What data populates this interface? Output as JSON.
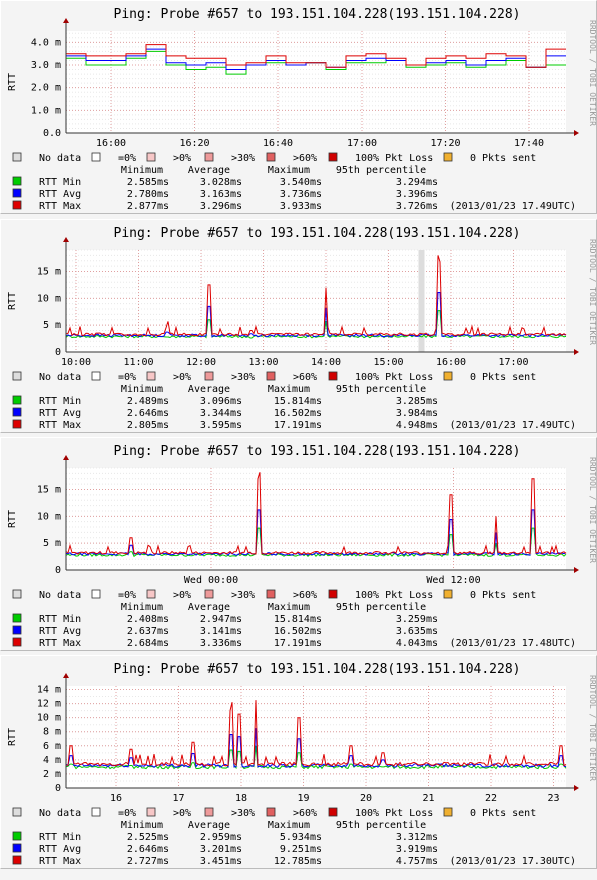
{
  "legend_boxes": [
    {
      "label": "No data",
      "color": "#dddddd"
    },
    {
      "label": "=0%",
      "color": "#ffffff"
    },
    {
      "label": ">0%",
      "color": "#f7c7c7"
    },
    {
      "label": ">30%",
      "color": "#ee9a9a"
    },
    {
      "label": ">60%",
      "color": "#e06060"
    },
    {
      "label": "100% Pkt Loss",
      "color": "#d00000"
    },
    {
      "label": "0 Pkts sent",
      "color": "#f0b030"
    }
  ],
  "stat_headers": [
    "Minimum",
    "Average",
    "Maximum",
    "95th percentile"
  ],
  "series_colors": {
    "RTT Min": "#00cc00",
    "RTT Avg": "#0000ff",
    "RTT Max": "#dd0000"
  },
  "sidebar_text": "RRDTOOL / TOBI OETIKER",
  "charts": [
    {
      "title": "Ping: Probe #657 to 193.151.104.228(193.151.104.228)",
      "ylabel": "RTT",
      "y_ticks": [
        "0.0",
        "1.0 m",
        "2.0 m",
        "3.0 m",
        "4.0 m"
      ],
      "y_max": 4.5,
      "x_ticks": [
        "16:00",
        "16:20",
        "16:40",
        "17:00",
        "17:20",
        "17:40"
      ],
      "x_tick_pos": [
        0.09,
        0.257,
        0.424,
        0.592,
        0.759,
        0.926
      ],
      "stats": [
        {
          "name": "RTT Min",
          "min": "2.585ms",
          "avg": "3.028ms",
          "max": "3.540ms",
          "p95": "3.294ms"
        },
        {
          "name": "RTT Avg",
          "min": "2.780ms",
          "avg": "3.163ms",
          "max": "3.736ms",
          "p95": "3.396ms"
        },
        {
          "name": "RTT Max",
          "min": "2.877ms",
          "avg": "3.296ms",
          "max": "3.933ms",
          "p95": "3.726ms",
          "stamp": "(2013/01/23 17.49UTC)"
        }
      ],
      "chart_data": {
        "type": "line",
        "style": "step",
        "series": [
          {
            "name": "RTT Min",
            "values": [
              3.3,
              3.0,
              3.0,
              3.3,
              3.6,
              3.0,
              2.8,
              2.9,
              2.6,
              3.0,
              3.1,
              3.0,
              3.1,
              2.8,
              3.1,
              3.1,
              3.2,
              2.9,
              3.0,
              3.1,
              2.9,
              3.0,
              3.2,
              2.9,
              3.0
            ]
          },
          {
            "name": "RTT Avg",
            "values": [
              3.4,
              3.2,
              3.2,
              3.4,
              3.7,
              3.1,
              3.0,
              3.1,
              2.8,
              3.0,
              3.2,
              3.0,
              3.1,
              2.9,
              3.2,
              3.3,
              3.2,
              3.0,
              3.1,
              3.2,
              3.0,
              3.2,
              3.3,
              2.9,
              3.4
            ]
          },
          {
            "name": "RTT Max",
            "values": [
              3.5,
              3.4,
              3.4,
              3.5,
              3.9,
              3.4,
              3.3,
              3.3,
              3.0,
              3.1,
              3.4,
              3.1,
              3.1,
              2.9,
              3.4,
              3.5,
              3.3,
              3.0,
              3.3,
              3.4,
              3.3,
              3.5,
              3.4,
              2.9,
              3.7
            ]
          }
        ]
      }
    },
    {
      "title": "Ping: Probe #657 to 193.151.104.228(193.151.104.228)",
      "ylabel": "RTT",
      "y_ticks": [
        "0",
        "5 m",
        "10 m",
        "15 m"
      ],
      "y_max": 19,
      "x_ticks": [
        "10:00",
        "11:00",
        "12:00",
        "13:00",
        "14:00",
        "15:00",
        "16:00",
        "17:00"
      ],
      "x_tick_pos": [
        0.02,
        0.145,
        0.27,
        0.395,
        0.52,
        0.645,
        0.77,
        0.895
      ],
      "stats": [
        {
          "name": "RTT Min",
          "min": "2.489ms",
          "avg": "3.096ms",
          "max": "15.814ms",
          "p95": "3.285ms"
        },
        {
          "name": "RTT Avg",
          "min": "2.646ms",
          "avg": "3.344ms",
          "max": "16.502ms",
          "p95": "3.984ms"
        },
        {
          "name": "RTT Max",
          "min": "2.805ms",
          "avg": "3.595ms",
          "max": "17.191ms",
          "p95": "4.948ms",
          "stamp": "(2013/01/23 17.49UTC)"
        }
      ],
      "chart_data": {
        "type": "line",
        "style": "noisy",
        "spikes": [
          [
            0.2,
            4.5
          ],
          [
            0.285,
            12.5
          ],
          [
            0.37,
            4
          ],
          [
            0.52,
            12
          ],
          [
            0.745,
            16.8
          ]
        ],
        "baseline": 3.1
      }
    },
    {
      "title": "Ping: Probe #657 to 193.151.104.228(193.151.104.228)",
      "ylabel": "RTT",
      "y_ticks": [
        "0",
        "5 m",
        "10 m",
        "15 m"
      ],
      "y_max": 19,
      "x_ticks": [
        "Wed 00:00",
        "Wed 12:00"
      ],
      "x_tick_pos": [
        0.29,
        0.775
      ],
      "stats": [
        {
          "name": "RTT Min",
          "min": "2.408ms",
          "avg": "2.947ms",
          "max": "15.814ms",
          "p95": "3.259ms"
        },
        {
          "name": "RTT Avg",
          "min": "2.637ms",
          "avg": "3.141ms",
          "max": "16.502ms",
          "p95": "3.635ms"
        },
        {
          "name": "RTT Max",
          "min": "2.684ms",
          "avg": "3.336ms",
          "max": "17.191ms",
          "p95": "4.043ms",
          "stamp": "(2013/01/23 17.48UTC)"
        }
      ],
      "chart_data": {
        "type": "line",
        "style": "noisy",
        "spikes": [
          [
            0.13,
            6
          ],
          [
            0.385,
            17
          ],
          [
            0.77,
            14
          ],
          [
            0.86,
            10
          ],
          [
            0.935,
            17
          ]
        ],
        "baseline": 3.0
      }
    },
    {
      "title": "Ping: Probe #657 to 193.151.104.228(193.151.104.228)",
      "ylabel": "RTT",
      "y_ticks": [
        "0",
        "2 m",
        "4 m",
        "6 m",
        "8 m",
        "10 m",
        "12 m",
        "14 m"
      ],
      "y_max": 14.5,
      "x_ticks": [
        "16",
        "17",
        "18",
        "19",
        "20",
        "21",
        "22",
        "23"
      ],
      "x_tick_pos": [
        0.1,
        0.225,
        0.35,
        0.475,
        0.6,
        0.725,
        0.85,
        0.975
      ],
      "stats": [
        {
          "name": "RTT Min",
          "min": "2.525ms",
          "avg": "2.959ms",
          "max": "5.934ms",
          "p95": "3.312ms"
        },
        {
          "name": "RTT Avg",
          "min": "2.646ms",
          "avg": "3.201ms",
          "max": "9.251ms",
          "p95": "3.919ms"
        },
        {
          "name": "RTT Max",
          "min": "2.727ms",
          "avg": "3.451ms",
          "max": "12.785ms",
          "p95": "4.757ms",
          "stamp": "(2013/01/23 17.30UTC)"
        }
      ],
      "chart_data": {
        "type": "line",
        "style": "noisy",
        "spikes": [
          [
            0.01,
            6
          ],
          [
            0.13,
            5.5
          ],
          [
            0.255,
            6.5
          ],
          [
            0.33,
            11
          ],
          [
            0.345,
            10.5
          ],
          [
            0.38,
            12.5
          ],
          [
            0.465,
            10
          ],
          [
            0.57,
            6
          ],
          [
            0.635,
            5
          ],
          [
            0.99,
            6
          ]
        ],
        "baseline": 3.2
      }
    }
  ]
}
